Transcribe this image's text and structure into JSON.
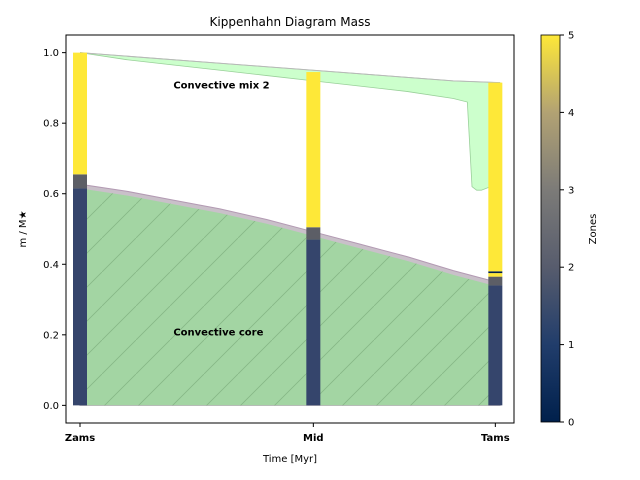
{
  "chart_data": {
    "type": "area",
    "title": "Kippenhahn Diagram Mass",
    "xlabel": "Time [Myr]",
    "ylabel": "m / M★",
    "ylim": [
      -0.05,
      1.05
    ],
    "y_ticks": [
      "0.0",
      "0.2",
      "0.4",
      "0.6",
      "0.8",
      "1.0"
    ],
    "categories": [
      "Zams",
      "Mid",
      "Tams"
    ],
    "category_x": [
      0.0,
      0.5,
      0.89
    ],
    "xlim": [
      -0.03,
      0.93
    ],
    "annotations": [
      {
        "text": "Convective mix 2",
        "x": 0.2,
        "y": 0.91
      },
      {
        "text": "Convective core",
        "x": 0.2,
        "y": 0.21
      }
    ],
    "regions": {
      "total_mass": {
        "x": [
          0.0,
          0.1,
          0.2,
          0.3,
          0.4,
          0.5,
          0.6,
          0.7,
          0.8,
          0.9
        ],
        "y": [
          1.0,
          0.99,
          0.98,
          0.97,
          0.96,
          0.95,
          0.94,
          0.93,
          0.92,
          0.915
        ]
      },
      "convective_core": {
        "x": [
          0.0,
          0.1,
          0.2,
          0.3,
          0.4,
          0.5,
          0.6,
          0.7,
          0.8,
          0.9
        ],
        "y": [
          0.615,
          0.595,
          0.57,
          0.545,
          0.515,
          0.48,
          0.445,
          0.41,
          0.37,
          0.335
        ]
      },
      "convective_mix_2_lower": {
        "x": [
          0.0,
          0.1,
          0.2,
          0.3,
          0.4,
          0.5,
          0.6,
          0.7,
          0.8,
          0.83,
          0.84,
          0.85,
          0.86,
          0.88,
          0.9
        ],
        "y": [
          1.0,
          0.98,
          0.965,
          0.95,
          0.935,
          0.92,
          0.905,
          0.89,
          0.87,
          0.86,
          0.62,
          0.61,
          0.61,
          0.62,
          0.635
        ]
      }
    },
    "color_scale": {
      "label": "Zones",
      "min": 0,
      "max": 5,
      "ticks": [
        "0",
        "1",
        "2",
        "3",
        "4",
        "5"
      ],
      "colormap": "cividis"
    },
    "zone_bars": [
      {
        "category": "Zams",
        "segments": [
          {
            "from": 0.0,
            "to": 0.615,
            "zone": 1
          },
          {
            "from": 0.615,
            "to": 0.655,
            "zone": 2
          },
          {
            "from": 0.655,
            "to": 1.0,
            "zone": 5
          }
        ]
      },
      {
        "category": "Mid",
        "segments": [
          {
            "from": 0.0,
            "to": 0.47,
            "zone": 1
          },
          {
            "from": 0.47,
            "to": 0.505,
            "zone": 2
          },
          {
            "from": 0.505,
            "to": 0.945,
            "zone": 5
          }
        ]
      },
      {
        "category": "Tams",
        "segments": [
          {
            "from": 0.0,
            "to": 0.34,
            "zone": 1
          },
          {
            "from": 0.34,
            "to": 0.365,
            "zone": 2
          },
          {
            "from": 0.365,
            "to": 0.375,
            "zone": 5
          },
          {
            "from": 0.375,
            "to": 0.38,
            "zone": 0
          },
          {
            "from": 0.38,
            "to": 0.915,
            "zone": 5
          }
        ]
      }
    ],
    "colors": {
      "convective_core": "#a3d5a3",
      "convective_mix": "#ccffcc",
      "envelope_edge": "#b39ab3",
      "zone_1": "#35456c",
      "zone_2": "#5c5e66",
      "zone_5": "#fee838",
      "zone_0": "#00204c"
    }
  }
}
